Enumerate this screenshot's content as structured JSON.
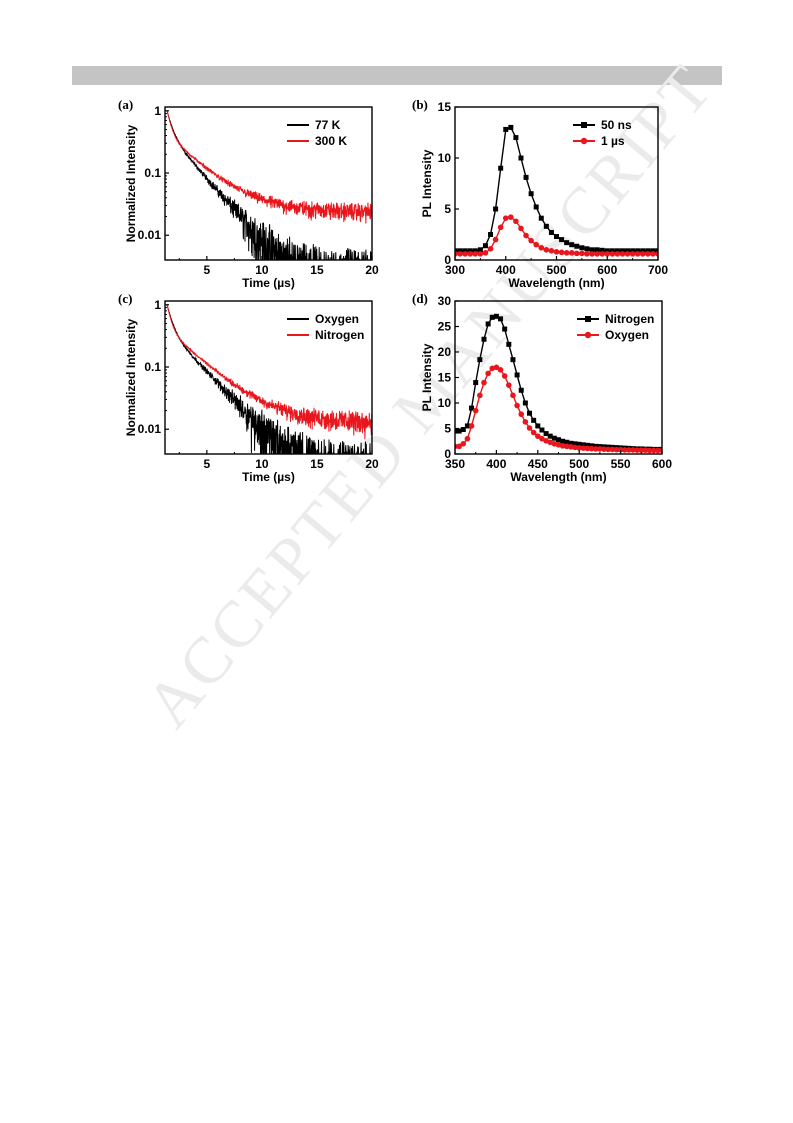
{
  "watermark": "ACCEPTED MANUSCRIPT",
  "chart_data": [
    {
      "panel_label": "(a)",
      "type": "line",
      "xlabel": "Time (µs)",
      "ylabel": "Normalized Intensity",
      "xlim": [
        1.2,
        20
      ],
      "ylim": [
        0.004,
        1.15
      ],
      "y_scale": "log",
      "x_ticks": [
        5,
        10,
        15,
        20
      ],
      "y_ticks": [
        {
          "value": 1,
          "label": "1"
        },
        {
          "value": 0.1,
          "label": "0.1"
        },
        {
          "value": 0.01,
          "label": "0.01"
        }
      ],
      "legend_position": "top-right",
      "series": [
        {
          "name": "77 K",
          "color": "#000000",
          "model": {
            "t0": 1.4,
            "A": 0.55,
            "tau1": 0.45,
            "B": 0.42,
            "tau2": 2.2,
            "C": 0.0,
            "floor": 0.01,
            "noise": 0.6
          }
        },
        {
          "name": "300 K",
          "color": "#e8161d",
          "model": {
            "t0": 1.4,
            "A": 0.6,
            "tau1": 0.35,
            "B": 0.38,
            "tau2": 2.6,
            "C": 0.024,
            "floor": 0.02,
            "noise": 0.25
          }
        }
      ]
    },
    {
      "panel_label": "(b)",
      "type": "line",
      "xlabel": "Wavelength (nm)",
      "ylabel": "PL Intensity",
      "xlim": [
        300,
        700
      ],
      "ylim": [
        0,
        15
      ],
      "x_ticks": [
        300,
        400,
        500,
        600,
        700
      ],
      "y_ticks": [
        {
          "value": 0,
          "label": "0"
        },
        {
          "value": 5,
          "label": "5"
        },
        {
          "value": 10,
          "label": "10"
        },
        {
          "value": 15,
          "label": "15"
        }
      ],
      "legend_position": "top-right",
      "series": [
        {
          "name": "50 ns",
          "color": "#000000",
          "marker": "square",
          "x": [
            300,
            310,
            320,
            330,
            340,
            350,
            360,
            370,
            380,
            390,
            400,
            410,
            420,
            430,
            440,
            450,
            460,
            470,
            480,
            490,
            500,
            510,
            520,
            530,
            540,
            550,
            560,
            570,
            580,
            590,
            600,
            610,
            620,
            630,
            640,
            650,
            660,
            670,
            680,
            690,
            700
          ],
          "y": [
            0.9,
            0.9,
            0.9,
            0.9,
            0.9,
            1.0,
            1.4,
            2.5,
            5.0,
            9.0,
            12.8,
            13.0,
            12.0,
            10.0,
            8.1,
            6.5,
            5.2,
            4.1,
            3.3,
            2.7,
            2.3,
            2.0,
            1.7,
            1.5,
            1.35,
            1.2,
            1.1,
            1.0,
            1.0,
            0.95,
            0.9,
            0.9,
            0.9,
            0.9,
            0.9,
            0.9,
            0.9,
            0.9,
            0.9,
            0.9,
            0.9
          ]
        },
        {
          "name": "1 µs",
          "color": "#e8161d",
          "marker": "circle",
          "x": [
            300,
            310,
            320,
            330,
            340,
            350,
            360,
            370,
            380,
            390,
            400,
            410,
            420,
            430,
            440,
            450,
            460,
            470,
            480,
            490,
            500,
            510,
            520,
            530,
            540,
            550,
            560,
            570,
            580,
            590,
            600,
            610,
            620,
            630,
            640,
            650,
            660,
            670,
            680,
            690,
            700
          ],
          "y": [
            0.6,
            0.6,
            0.6,
            0.6,
            0.6,
            0.6,
            0.7,
            1.1,
            2.0,
            3.2,
            4.1,
            4.2,
            3.8,
            3.1,
            2.4,
            1.9,
            1.5,
            1.2,
            1.0,
            0.9,
            0.8,
            0.75,
            0.7,
            0.7,
            0.65,
            0.65,
            0.6,
            0.6,
            0.6,
            0.6,
            0.6,
            0.6,
            0.6,
            0.6,
            0.6,
            0.6,
            0.6,
            0.6,
            0.6,
            0.6,
            0.6
          ]
        }
      ]
    },
    {
      "panel_label": "(c)",
      "type": "line",
      "xlabel": "Time (µs)",
      "ylabel": "Normalized Intensity",
      "xlim": [
        1.2,
        20
      ],
      "ylim": [
        0.004,
        1.15
      ],
      "y_scale": "log",
      "x_ticks": [
        5,
        10,
        15,
        20
      ],
      "y_ticks": [
        {
          "value": 1,
          "label": "1"
        },
        {
          "value": 0.1,
          "label": "0.1"
        },
        {
          "value": 0.01,
          "label": "0.01"
        }
      ],
      "legend_position": "top-right",
      "series": [
        {
          "name": "Oxygen",
          "color": "#000000",
          "model": {
            "t0": 1.4,
            "A": 0.6,
            "tau1": 0.45,
            "B": 0.38,
            "tau2": 2.4,
            "C": 0.0,
            "floor": 0.01,
            "noise": 0.6
          }
        },
        {
          "name": "Nitrogen",
          "color": "#e8161d",
          "model": {
            "t0": 1.4,
            "A": 0.6,
            "tau1": 0.35,
            "B": 0.38,
            "tau2": 2.7,
            "C": 0.013,
            "floor": 0.014,
            "noise": 0.25
          }
        }
      ]
    },
    {
      "panel_label": "(d)",
      "type": "line",
      "xlabel": "Wavelength (nm)",
      "ylabel": "PL Intensity",
      "xlim": [
        350,
        600
      ],
      "ylim": [
        0,
        30
      ],
      "x_ticks": [
        350,
        400,
        450,
        500,
        550,
        600
      ],
      "y_ticks": [
        {
          "value": 0,
          "label": "0"
        },
        {
          "value": 5,
          "label": "5"
        },
        {
          "value": 10,
          "label": "10"
        },
        {
          "value": 15,
          "label": "15"
        },
        {
          "value": 20,
          "label": "20"
        },
        {
          "value": 25,
          "label": "25"
        },
        {
          "value": 30,
          "label": "30"
        }
      ],
      "legend_position": "top-right",
      "series": [
        {
          "name": "Nitrogen",
          "color": "#000000",
          "marker": "square",
          "x": [
            350,
            355,
            360,
            365,
            370,
            375,
            380,
            385,
            390,
            395,
            400,
            405,
            410,
            415,
            420,
            425,
            430,
            435,
            440,
            445,
            450,
            455,
            460,
            465,
            470,
            475,
            480,
            485,
            490,
            495,
            500,
            505,
            510,
            515,
            520,
            525,
            530,
            535,
            540,
            545,
            550,
            555,
            560,
            565,
            570,
            575,
            580,
            585,
            590,
            595,
            600
          ],
          "y": [
            4.5,
            4.5,
            4.8,
            5.5,
            9.0,
            14.0,
            18.5,
            22.5,
            25.5,
            26.8,
            27.0,
            26.5,
            24.5,
            21.5,
            18.5,
            15.5,
            12.5,
            10.0,
            8.0,
            6.6,
            5.5,
            4.7,
            4.0,
            3.5,
            3.1,
            2.8,
            2.5,
            2.3,
            2.1,
            2.0,
            1.9,
            1.8,
            1.7,
            1.6,
            1.5,
            1.45,
            1.4,
            1.35,
            1.3,
            1.25,
            1.2,
            1.15,
            1.1,
            1.05,
            1.0,
            1.0,
            0.95,
            0.95,
            0.9,
            0.9,
            0.9
          ]
        },
        {
          "name": "Oxygen",
          "color": "#e8161d",
          "marker": "circle",
          "x": [
            350,
            355,
            360,
            365,
            370,
            375,
            380,
            385,
            390,
            395,
            400,
            405,
            410,
            415,
            420,
            425,
            430,
            435,
            440,
            445,
            450,
            455,
            460,
            465,
            470,
            475,
            480,
            485,
            490,
            495,
            500,
            505,
            510,
            515,
            520,
            525,
            530,
            535,
            540,
            545,
            550,
            555,
            560,
            565,
            570,
            575,
            580,
            585,
            590,
            595,
            600
          ],
          "y": [
            1.5,
            1.5,
            2.0,
            3.0,
            5.5,
            8.5,
            11.5,
            14.0,
            15.8,
            16.8,
            17.0,
            16.5,
            15.3,
            13.5,
            11.5,
            9.5,
            7.8,
            6.3,
            5.1,
            4.2,
            3.5,
            3.0,
            2.6,
            2.3,
            2.0,
            1.8,
            1.6,
            1.5,
            1.4,
            1.3,
            1.2,
            1.15,
            1.1,
            1.05,
            1.0,
            1.0,
            0.95,
            0.9,
            0.9,
            0.85,
            0.85,
            0.8,
            0.8,
            0.8,
            0.75,
            0.75,
            0.75,
            0.7,
            0.7,
            0.7,
            0.7
          ]
        }
      ]
    }
  ]
}
